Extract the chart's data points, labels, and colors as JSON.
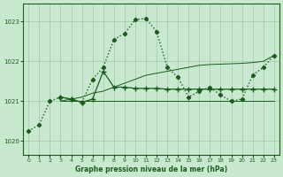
{
  "title": "Graphe pression niveau de la mer (hPa)",
  "bg_color": "#c8e8d0",
  "grid_color": "#a0c8a8",
  "line_color": "#1a5c1a",
  "xlim": [
    -0.5,
    23.5
  ],
  "ylim": [
    1019.65,
    1023.45
  ],
  "yticks": [
    1020,
    1021,
    1022,
    1023
  ],
  "xticks": [
    0,
    1,
    2,
    3,
    4,
    5,
    6,
    7,
    8,
    9,
    10,
    11,
    12,
    13,
    14,
    15,
    16,
    17,
    18,
    19,
    20,
    21,
    22,
    23
  ],
  "line1_x": [
    0,
    1,
    2,
    3,
    4,
    5,
    6,
    7,
    8,
    9,
    10,
    11,
    12,
    13,
    14,
    15,
    16,
    17,
    18,
    19,
    20,
    21,
    22,
    23
  ],
  "line1_y": [
    1020.25,
    1020.4,
    1021.0,
    1021.1,
    1021.05,
    1020.97,
    1021.55,
    1021.85,
    1022.55,
    1022.7,
    1023.05,
    1023.08,
    1022.75,
    1021.85,
    1021.6,
    1021.1,
    1021.25,
    1021.35,
    1021.15,
    1021.0,
    1021.05,
    1021.65,
    1021.85,
    1022.15
  ],
  "line2_x": [
    3,
    4,
    5,
    6,
    7,
    8,
    9,
    10,
    11,
    12,
    13,
    14,
    15,
    16,
    17,
    18,
    19,
    20,
    21,
    22,
    23
  ],
  "line2_y": [
    1021.0,
    1021.0,
    1021.0,
    1021.0,
    1021.0,
    1021.0,
    1021.0,
    1021.0,
    1021.0,
    1021.0,
    1021.0,
    1021.0,
    1021.0,
    1021.0,
    1021.0,
    1021.0,
    1021.0,
    1021.0,
    1021.0,
    1021.0,
    1021.0
  ],
  "line3_x": [
    3,
    4,
    5,
    6,
    7,
    8,
    9,
    10,
    11,
    12,
    13,
    14,
    15,
    16,
    17,
    18,
    19,
    20,
    21,
    22,
    23
  ],
  "line3_y": [
    1021.0,
    1021.05,
    1021.1,
    1021.2,
    1021.25,
    1021.35,
    1021.45,
    1021.55,
    1021.65,
    1021.7,
    1021.75,
    1021.8,
    1021.85,
    1021.9,
    1021.92,
    1021.93,
    1021.94,
    1021.95,
    1021.97,
    1022.0,
    1022.15
  ],
  "line4_x": [
    3,
    4,
    5,
    6,
    7,
    8,
    9,
    10,
    11,
    12,
    13,
    14,
    15,
    16,
    17,
    18,
    19,
    20,
    21,
    22,
    23
  ],
  "line4_y": [
    1021.1,
    1021.05,
    1020.97,
    1021.05,
    1021.75,
    1021.35,
    1021.35,
    1021.32,
    1021.32,
    1021.32,
    1021.3,
    1021.3,
    1021.3,
    1021.3,
    1021.3,
    1021.3,
    1021.3,
    1021.3,
    1021.3,
    1021.3,
    1021.3
  ]
}
